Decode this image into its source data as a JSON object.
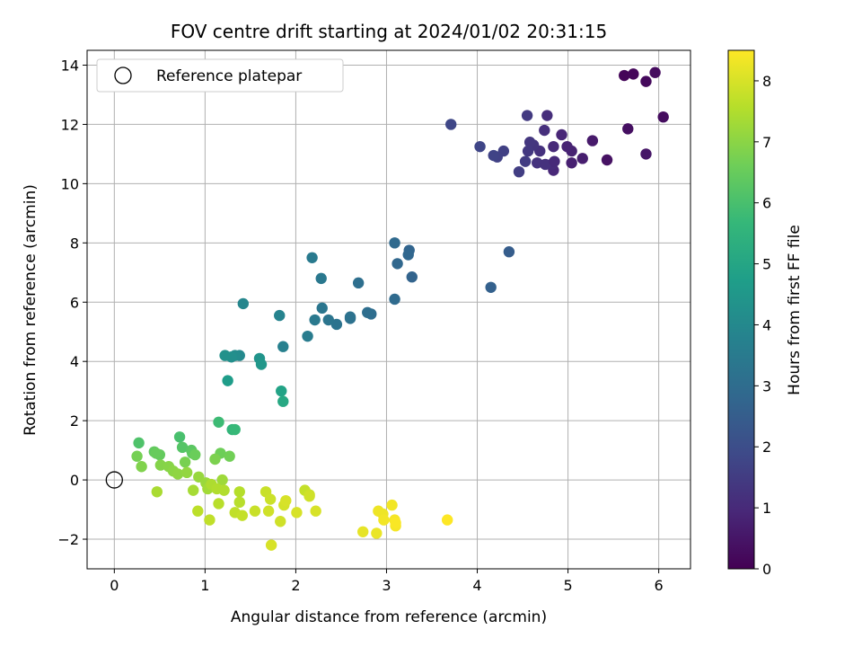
{
  "chart_data": {
    "type": "scatter",
    "title": "FOV centre drift starting at 2024/01/02 20:31:15",
    "xlabel": "Angular distance from reference (arcmin)",
    "ylabel": "Rotation from reference (arcmin)",
    "xlim": [
      -0.3,
      6.35
    ],
    "ylim": [
      -3.0,
      14.5
    ],
    "xticks": [
      0,
      1,
      2,
      3,
      4,
      5,
      6
    ],
    "yticks": [
      -2,
      0,
      2,
      4,
      6,
      8,
      10,
      12,
      14
    ],
    "grid": true,
    "legend": {
      "placement": "top-left",
      "entries": [
        "Reference platepar"
      ]
    },
    "reference_point": {
      "x": 0,
      "y": 0
    },
    "colorbar": {
      "label": "Hours from first FF file",
      "colormap": "viridis",
      "range": [
        0,
        8.5
      ],
      "ticks": [
        0,
        1,
        2,
        3,
        4,
        5,
        6,
        7,
        8
      ]
    },
    "points": [
      {
        "x": 5.62,
        "y": 13.65,
        "c": 0.1
      },
      {
        "x": 5.72,
        "y": 13.7,
        "c": 0.15
      },
      {
        "x": 5.86,
        "y": 13.45,
        "c": 0.2
      },
      {
        "x": 5.96,
        "y": 13.75,
        "c": 0.25
      },
      {
        "x": 6.05,
        "y": 12.25,
        "c": 0.3
      },
      {
        "x": 5.66,
        "y": 11.85,
        "c": 0.35
      },
      {
        "x": 5.43,
        "y": 10.8,
        "c": 0.4
      },
      {
        "x": 5.86,
        "y": 11.0,
        "c": 0.5
      },
      {
        "x": 5.27,
        "y": 11.45,
        "c": 0.6
      },
      {
        "x": 5.16,
        "y": 10.85,
        "c": 0.7
      },
      {
        "x": 5.04,
        "y": 10.7,
        "c": 0.75
      },
      {
        "x": 5.04,
        "y": 11.1,
        "c": 0.8
      },
      {
        "x": 4.99,
        "y": 11.25,
        "c": 0.85
      },
      {
        "x": 4.93,
        "y": 11.65,
        "c": 0.9
      },
      {
        "x": 4.84,
        "y": 10.45,
        "c": 0.95
      },
      {
        "x": 4.84,
        "y": 11.25,
        "c": 1.0
      },
      {
        "x": 4.82,
        "y": 10.65,
        "c": 1.05
      },
      {
        "x": 4.77,
        "y": 12.3,
        "c": 1.1
      },
      {
        "x": 4.74,
        "y": 11.8,
        "c": 1.15
      },
      {
        "x": 4.69,
        "y": 11.1,
        "c": 1.2
      },
      {
        "x": 4.66,
        "y": 10.7,
        "c": 1.25
      },
      {
        "x": 4.62,
        "y": 11.3,
        "c": 1.3
      },
      {
        "x": 4.58,
        "y": 11.4,
        "c": 1.35
      },
      {
        "x": 4.56,
        "y": 11.1,
        "c": 1.4
      },
      {
        "x": 4.55,
        "y": 12.3,
        "c": 1.45
      },
      {
        "x": 4.53,
        "y": 10.75,
        "c": 1.5
      },
      {
        "x": 4.46,
        "y": 10.4,
        "c": 1.55
      },
      {
        "x": 4.29,
        "y": 11.1,
        "c": 1.6
      },
      {
        "x": 4.22,
        "y": 10.9,
        "c": 1.65
      },
      {
        "x": 4.18,
        "y": 10.95,
        "c": 1.7
      },
      {
        "x": 4.03,
        "y": 11.25,
        "c": 1.75
      },
      {
        "x": 3.71,
        "y": 12.0,
        "c": 1.8
      },
      {
        "x": 4.75,
        "y": 10.65,
        "c": 1.2
      },
      {
        "x": 4.85,
        "y": 10.75,
        "c": 1.0
      },
      {
        "x": 4.35,
        "y": 7.7,
        "c": 2.5
      },
      {
        "x": 4.15,
        "y": 6.5,
        "c": 2.6
      },
      {
        "x": 3.28,
        "y": 6.85,
        "c": 2.7
      },
      {
        "x": 3.25,
        "y": 7.75,
        "c": 2.75
      },
      {
        "x": 3.24,
        "y": 7.6,
        "c": 2.8
      },
      {
        "x": 3.12,
        "y": 7.3,
        "c": 2.85
      },
      {
        "x": 3.09,
        "y": 8.0,
        "c": 2.9
      },
      {
        "x": 3.09,
        "y": 6.1,
        "c": 2.95
      },
      {
        "x": 2.83,
        "y": 5.6,
        "c": 3.0
      },
      {
        "x": 2.79,
        "y": 5.65,
        "c": 3.05
      },
      {
        "x": 2.69,
        "y": 6.65,
        "c": 3.1
      },
      {
        "x": 2.6,
        "y": 5.45,
        "c": 3.15
      },
      {
        "x": 2.6,
        "y": 5.5,
        "c": 3.2
      },
      {
        "x": 2.45,
        "y": 5.25,
        "c": 3.25
      },
      {
        "x": 2.36,
        "y": 5.4,
        "c": 3.3
      },
      {
        "x": 2.29,
        "y": 5.8,
        "c": 3.35
      },
      {
        "x": 2.28,
        "y": 6.8,
        "c": 3.4
      },
      {
        "x": 2.21,
        "y": 5.4,
        "c": 3.45
      },
      {
        "x": 2.18,
        "y": 7.5,
        "c": 3.5
      },
      {
        "x": 2.13,
        "y": 4.85,
        "c": 3.55
      },
      {
        "x": 1.86,
        "y": 4.5,
        "c": 3.7
      },
      {
        "x": 1.82,
        "y": 5.55,
        "c": 3.8
      },
      {
        "x": 1.42,
        "y": 5.95,
        "c": 3.9
      },
      {
        "x": 1.38,
        "y": 4.2,
        "c": 4.0
      },
      {
        "x": 1.33,
        "y": 4.2,
        "c": 4.1
      },
      {
        "x": 1.29,
        "y": 4.15,
        "c": 4.2
      },
      {
        "x": 1.22,
        "y": 4.2,
        "c": 4.3
      },
      {
        "x": 1.6,
        "y": 4.1,
        "c": 4.4
      },
      {
        "x": 1.62,
        "y": 3.9,
        "c": 4.5
      },
      {
        "x": 1.25,
        "y": 3.35,
        "c": 4.7
      },
      {
        "x": 1.84,
        "y": 3.0,
        "c": 4.9
      },
      {
        "x": 1.86,
        "y": 2.65,
        "c": 5.1
      },
      {
        "x": 1.3,
        "y": 1.7,
        "c": 5.6
      },
      {
        "x": 1.33,
        "y": 1.7,
        "c": 5.7
      },
      {
        "x": 1.15,
        "y": 1.95,
        "c": 5.8
      },
      {
        "x": 0.72,
        "y": 1.45,
        "c": 6.0
      },
      {
        "x": 0.27,
        "y": 1.25,
        "c": 6.1
      },
      {
        "x": 0.75,
        "y": 1.1,
        "c": 6.2
      },
      {
        "x": 0.85,
        "y": 1.0,
        "c": 6.3
      },
      {
        "x": 0.86,
        "y": 0.9,
        "c": 6.35
      },
      {
        "x": 0.44,
        "y": 0.95,
        "c": 6.4
      },
      {
        "x": 0.5,
        "y": 0.85,
        "c": 6.45
      },
      {
        "x": 0.46,
        "y": 0.9,
        "c": 6.5
      },
      {
        "x": 0.89,
        "y": 0.85,
        "c": 6.55
      },
      {
        "x": 1.17,
        "y": 0.9,
        "c": 6.6
      },
      {
        "x": 1.27,
        "y": 0.8,
        "c": 6.65
      },
      {
        "x": 0.25,
        "y": 0.8,
        "c": 6.7
      },
      {
        "x": 0.78,
        "y": 0.6,
        "c": 6.75
      },
      {
        "x": 1.11,
        "y": 0.7,
        "c": 6.8
      },
      {
        "x": 0.3,
        "y": 0.45,
        "c": 6.85
      },
      {
        "x": 0.51,
        "y": 0.5,
        "c": 6.9
      },
      {
        "x": 0.6,
        "y": 0.45,
        "c": 6.95
      },
      {
        "x": 0.65,
        "y": 0.3,
        "c": 7.0
      },
      {
        "x": 0.7,
        "y": 0.2,
        "c": 7.05
      },
      {
        "x": 0.8,
        "y": 0.25,
        "c": 7.1
      },
      {
        "x": 0.93,
        "y": 0.1,
        "c": 7.15
      },
      {
        "x": 1.01,
        "y": -0.1,
        "c": 7.2
      },
      {
        "x": 1.19,
        "y": 0.0,
        "c": 7.25
      },
      {
        "x": 1.03,
        "y": -0.3,
        "c": 7.3
      },
      {
        "x": 0.87,
        "y": -0.35,
        "c": 7.35
      },
      {
        "x": 0.47,
        "y": -0.4,
        "c": 7.4
      },
      {
        "x": 1.07,
        "y": -0.15,
        "c": 7.45
      },
      {
        "x": 1.13,
        "y": -0.3,
        "c": 7.5
      },
      {
        "x": 1.21,
        "y": -0.35,
        "c": 7.5
      },
      {
        "x": 1.38,
        "y": -0.4,
        "c": 7.55
      },
      {
        "x": 1.38,
        "y": -0.75,
        "c": 7.6
      },
      {
        "x": 1.15,
        "y": -0.8,
        "c": 7.6
      },
      {
        "x": 0.92,
        "y": -1.05,
        "c": 7.65
      },
      {
        "x": 1.05,
        "y": -1.35,
        "c": 7.7
      },
      {
        "x": 1.33,
        "y": -1.1,
        "c": 7.7
      },
      {
        "x": 1.41,
        "y": -1.2,
        "c": 7.75
      },
      {
        "x": 1.55,
        "y": -1.05,
        "c": 7.8
      },
      {
        "x": 1.67,
        "y": -0.4,
        "c": 7.8
      },
      {
        "x": 1.72,
        "y": -0.65,
        "c": 7.85
      },
      {
        "x": 1.7,
        "y": -1.05,
        "c": 7.9
      },
      {
        "x": 1.83,
        "y": -1.4,
        "c": 7.9
      },
      {
        "x": 1.87,
        "y": -0.85,
        "c": 7.95
      },
      {
        "x": 1.89,
        "y": -0.7,
        "c": 8.0
      },
      {
        "x": 2.01,
        "y": -1.1,
        "c": 8.0
      },
      {
        "x": 2.1,
        "y": -0.35,
        "c": 7.75
      },
      {
        "x": 2.15,
        "y": -0.5,
        "c": 7.85
      },
      {
        "x": 2.15,
        "y": -0.55,
        "c": 7.9
      },
      {
        "x": 2.22,
        "y": -1.05,
        "c": 8.0
      },
      {
        "x": 1.73,
        "y": -2.2,
        "c": 8.0
      },
      {
        "x": 2.74,
        "y": -1.75,
        "c": 8.2
      },
      {
        "x": 2.89,
        "y": -1.8,
        "c": 8.25
      },
      {
        "x": 2.91,
        "y": -1.05,
        "c": 8.3
      },
      {
        "x": 2.96,
        "y": -1.15,
        "c": 8.3
      },
      {
        "x": 2.97,
        "y": -1.35,
        "c": 8.35
      },
      {
        "x": 3.06,
        "y": -0.85,
        "c": 8.35
      },
      {
        "x": 3.09,
        "y": -1.35,
        "c": 8.4
      },
      {
        "x": 3.1,
        "y": -1.55,
        "c": 8.4
      },
      {
        "x": 3.1,
        "y": -1.45,
        "c": 8.45
      },
      {
        "x": 3.67,
        "y": -1.35,
        "c": 8.5
      }
    ]
  }
}
